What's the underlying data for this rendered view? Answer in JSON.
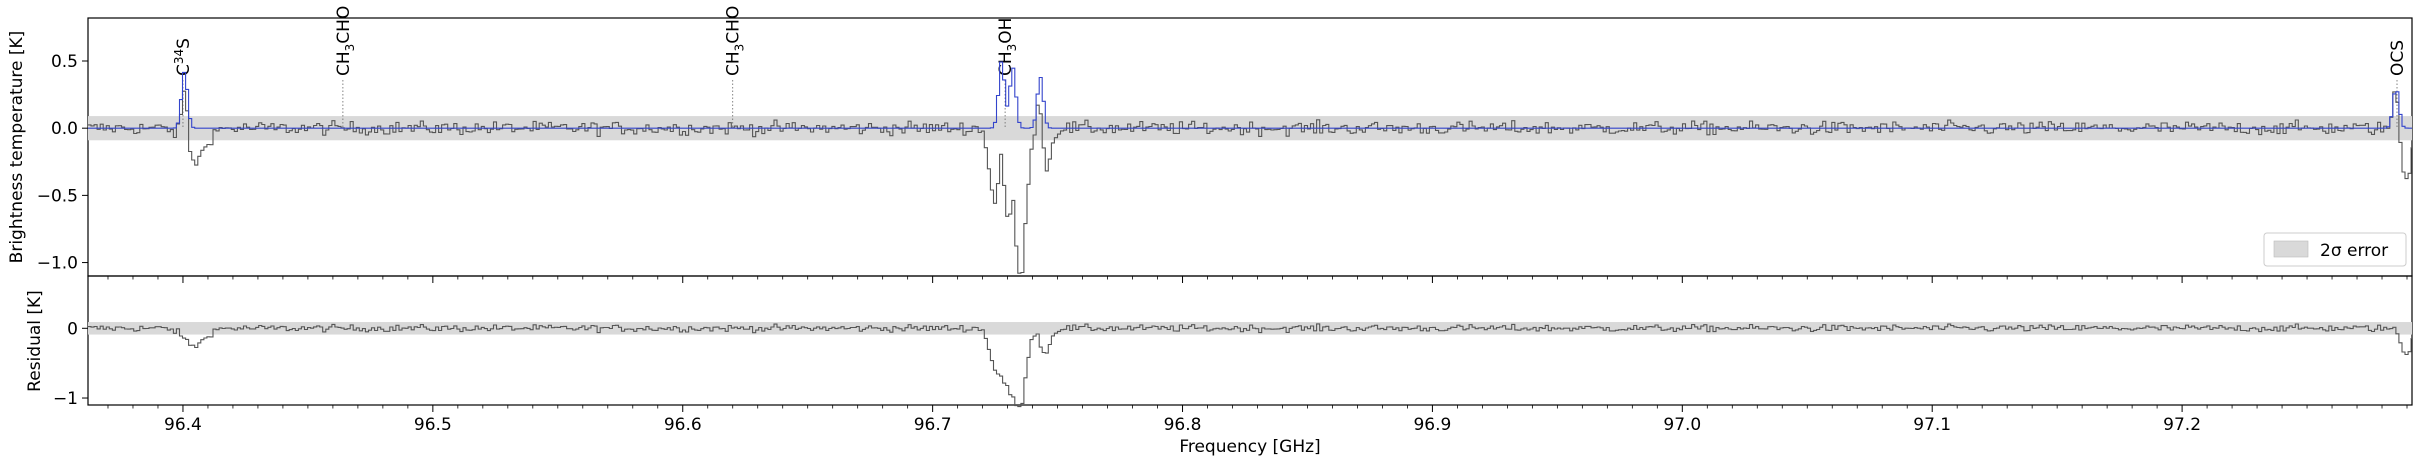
{
  "chart_data": {
    "type": "line",
    "xlabel": "Frequency [GHz]",
    "xlim": [
      96.362,
      97.292
    ],
    "x_ticks": [
      "96.4",
      "96.5",
      "96.6",
      "96.7",
      "96.8",
      "96.9",
      "97.0",
      "97.1",
      "97.2"
    ],
    "x_tick_values": [
      96.4,
      96.5,
      96.6,
      96.7,
      96.8,
      96.9,
      97.0,
      97.1,
      97.2
    ],
    "panels": [
      {
        "ylabel": "Brightness temperature [K]",
        "ylim": [
          -1.1,
          0.82
        ],
        "y_ticks": [
          "0.5",
          "0.0",
          "−0.5",
          "−1.0"
        ],
        "y_tick_values": [
          0.5,
          0.0,
          -0.5,
          -1.0
        ],
        "error_band": 0.09,
        "legend": {
          "label": "2σ error",
          "placement": "lower-right"
        },
        "line_labels": [
          {
            "freq": 96.4,
            "main": "C",
            "sup": "34",
            "rest": "S"
          },
          {
            "freq": 96.464,
            "main": "CH",
            "sub": "3",
            "rest": "CHO"
          },
          {
            "freq": 96.62,
            "main": "CH",
            "sub": "3",
            "rest": "CHO"
          },
          {
            "freq": 96.729,
            "main": "CH",
            "sub": "3",
            "rest": "OH"
          },
          {
            "freq": 97.286,
            "main": "OCS"
          }
        ],
        "series": [
          {
            "color": "#555555",
            "style": "step"
          },
          {
            "color": "#3344cc",
            "style": "model"
          }
        ]
      },
      {
        "ylabel": "Residual [K]",
        "ylim": [
          -1.1,
          0.75
        ],
        "y_ticks": [
          "0",
          "−1"
        ],
        "y_tick_values": [
          0,
          -1
        ],
        "error_band": 0.09,
        "series": [
          {
            "color": "#555555",
            "style": "step"
          }
        ]
      }
    ],
    "features": [
      {
        "freq": 96.4,
        "obs": 0.42,
        "model": 0.42,
        "width": 0.0012
      },
      {
        "freq": 96.404,
        "obs": -0.25,
        "model": 0.0,
        "width": 0.004
      },
      {
        "freq": 96.727,
        "obs": 0.45,
        "model": 0.5,
        "width": 0.0012
      },
      {
        "freq": 96.73,
        "obs": -0.85,
        "model": 0.0,
        "width": 0.003
      },
      {
        "freq": 96.7315,
        "obs": 0.4,
        "model": 0.45,
        "width": 0.0012
      },
      {
        "freq": 96.735,
        "obs": -0.9,
        "model": 0.0,
        "width": 0.002
      },
      {
        "freq": 96.7425,
        "obs": 0.38,
        "model": 0.38,
        "width": 0.0012
      },
      {
        "freq": 96.7445,
        "obs": -0.35,
        "model": 0.0,
        "width": 0.002
      },
      {
        "freq": 96.724,
        "obs": -0.45,
        "model": 0.0,
        "width": 0.002
      },
      {
        "freq": 97.285,
        "obs": 0.3,
        "model": 0.3,
        "width": 0.0012
      },
      {
        "freq": 97.289,
        "obs": -0.38,
        "model": 0.0,
        "width": 0.002
      }
    ],
    "noise_rms": 0.035,
    "channel_width": 0.00122
  }
}
